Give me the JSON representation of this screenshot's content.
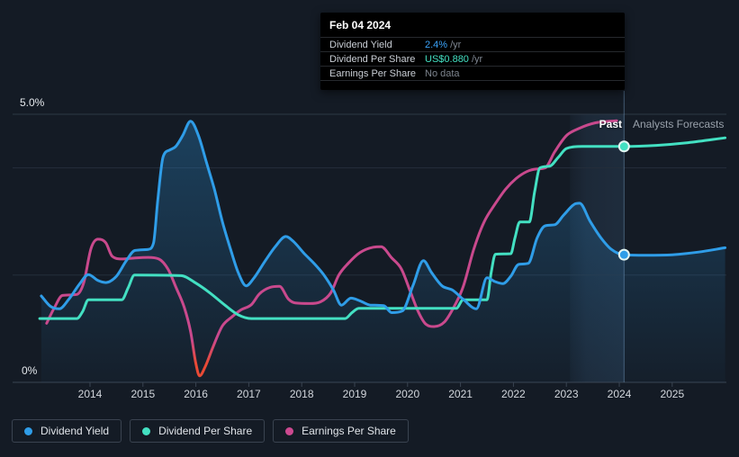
{
  "colors": {
    "background": "#141b25",
    "grid": "#242e3b",
    "grid_top": "#2d3845",
    "axis": "#3a4452",
    "divider": "#7aa6ce",
    "band": "#6098d0",
    "yield": "#2f9de8",
    "dps": "#43e0c2",
    "eps": "#c9498d",
    "eps_negative": "#e94a35",
    "marker_ring": "#e3f6f3"
  },
  "tooltip": {
    "date": "Feb 04 2024",
    "rows": [
      {
        "label": "Dividend Yield",
        "value": "2.4%",
        "suffix": "/yr",
        "value_color": "#3aa2f8"
      },
      {
        "label": "Dividend Per Share",
        "value": "US$0.880",
        "suffix": "/yr",
        "value_color": "#43e0c2"
      },
      {
        "label": "Earnings Per Share",
        "value": "No data",
        "suffix": "",
        "value_color": "#7d848e"
      }
    ]
  },
  "annotations": {
    "past": "Past",
    "forecast": "Analysts Forecasts"
  },
  "axis": {
    "y_top_label": "5.0%",
    "y_bottom_label": "0%",
    "x_ticks": [
      "2014",
      "2015",
      "2016",
      "2017",
      "2018",
      "2019",
      "2020",
      "2021",
      "2022",
      "2023",
      "2024",
      "2025"
    ]
  },
  "legend": {
    "items": [
      {
        "label": "Dividend Yield",
        "color": "#2f9de8"
      },
      {
        "label": "Dividend Per Share",
        "color": "#43e0c2"
      },
      {
        "label": "Earnings Per Share",
        "color": "#cc4990"
      }
    ]
  },
  "chart_data": {
    "type": "line",
    "axis_unit": "%",
    "ylim": [
      0,
      5
    ],
    "xlim": [
      2013,
      2026
    ],
    "gridlines_pct": [
      5,
      4,
      2
    ],
    "baseline_pct": 0,
    "band": {
      "start": 2023.07,
      "end": 2024.09
    },
    "divider_x": 2024.09,
    "series": [
      {
        "name": "Dividend Yield",
        "color_key": "yield",
        "area": true,
        "points": [
          [
            2013.08,
            1.61
          ],
          [
            2013.25,
            1.42
          ],
          [
            2013.42,
            1.37
          ],
          [
            2013.6,
            1.55
          ],
          [
            2013.8,
            1.83
          ],
          [
            2013.97,
            2.01
          ],
          [
            2014.15,
            1.9
          ],
          [
            2014.3,
            1.86
          ],
          [
            2014.5,
            1.98
          ],
          [
            2014.68,
            2.26
          ],
          [
            2014.85,
            2.46
          ],
          [
            2015.1,
            2.48
          ],
          [
            2015.2,
            2.6
          ],
          [
            2015.28,
            3.4
          ],
          [
            2015.38,
            4.2
          ],
          [
            2015.5,
            4.33
          ],
          [
            2015.62,
            4.4
          ],
          [
            2015.75,
            4.6
          ],
          [
            2015.9,
            4.87
          ],
          [
            2016.05,
            4.6
          ],
          [
            2016.2,
            4.1
          ],
          [
            2016.35,
            3.6
          ],
          [
            2016.5,
            3.0
          ],
          [
            2016.65,
            2.5
          ],
          [
            2016.8,
            2.05
          ],
          [
            2016.95,
            1.8
          ],
          [
            2017.1,
            1.95
          ],
          [
            2017.3,
            2.25
          ],
          [
            2017.5,
            2.53
          ],
          [
            2017.7,
            2.72
          ],
          [
            2017.85,
            2.62
          ],
          [
            2018.05,
            2.4
          ],
          [
            2018.25,
            2.2
          ],
          [
            2018.42,
            2.0
          ],
          [
            2018.6,
            1.72
          ],
          [
            2018.75,
            1.44
          ],
          [
            2018.93,
            1.57
          ],
          [
            2019.1,
            1.52
          ],
          [
            2019.3,
            1.44
          ],
          [
            2019.55,
            1.43
          ],
          [
            2019.7,
            1.3
          ],
          [
            2019.9,
            1.33
          ],
          [
            2020.1,
            1.8
          ],
          [
            2020.3,
            2.27
          ],
          [
            2020.45,
            2.05
          ],
          [
            2020.65,
            1.8
          ],
          [
            2020.85,
            1.72
          ],
          [
            2021.05,
            1.55
          ],
          [
            2021.3,
            1.37
          ],
          [
            2021.5,
            1.95
          ],
          [
            2021.65,
            1.88
          ],
          [
            2021.8,
            1.84
          ],
          [
            2021.95,
            1.98
          ],
          [
            2022.1,
            2.2
          ],
          [
            2022.28,
            2.22
          ],
          [
            2022.45,
            2.7
          ],
          [
            2022.6,
            2.92
          ],
          [
            2022.78,
            2.94
          ],
          [
            2022.95,
            3.12
          ],
          [
            2023.15,
            3.32
          ],
          [
            2023.25,
            3.34
          ],
          [
            2023.45,
            3.0
          ],
          [
            2023.65,
            2.7
          ],
          [
            2023.85,
            2.48
          ],
          [
            2024.09,
            2.38
          ],
          [
            2024.5,
            2.37
          ],
          [
            2025.0,
            2.38
          ],
          [
            2025.5,
            2.43
          ],
          [
            2026.0,
            2.51
          ]
        ]
      },
      {
        "name": "Dividend Per Share",
        "color_key": "dps",
        "area": false,
        "points": [
          [
            2013.05,
            1.19
          ],
          [
            2013.75,
            1.19
          ],
          [
            2013.86,
            1.32
          ],
          [
            2013.97,
            1.54
          ],
          [
            2014.6,
            1.54
          ],
          [
            2014.72,
            1.76
          ],
          [
            2014.84,
            2.0
          ],
          [
            2015.72,
            1.99
          ],
          [
            2016.0,
            1.85
          ],
          [
            2016.25,
            1.68
          ],
          [
            2016.55,
            1.44
          ],
          [
            2016.8,
            1.26
          ],
          [
            2017.05,
            1.19
          ],
          [
            2018.82,
            1.19
          ],
          [
            2018.95,
            1.3
          ],
          [
            2019.08,
            1.38
          ],
          [
            2020.92,
            1.38
          ],
          [
            2021.05,
            1.54
          ],
          [
            2021.5,
            1.54
          ],
          [
            2021.58,
            2.05
          ],
          [
            2021.66,
            2.39
          ],
          [
            2021.95,
            2.4
          ],
          [
            2022.03,
            2.7
          ],
          [
            2022.12,
            2.99
          ],
          [
            2022.3,
            2.99
          ],
          [
            2022.4,
            3.55
          ],
          [
            2022.5,
            4.0
          ],
          [
            2022.68,
            4.03
          ],
          [
            2022.85,
            4.2
          ],
          [
            2023.0,
            4.36
          ],
          [
            2023.3,
            4.4
          ],
          [
            2024.09,
            4.4
          ],
          [
            2024.7,
            4.42
          ],
          [
            2025.3,
            4.47
          ],
          [
            2026.0,
            4.56
          ]
        ]
      },
      {
        "name": "Earnings Per Share",
        "color_key": "eps",
        "area": false,
        "negative_gradient": true,
        "points": [
          [
            2013.18,
            1.1
          ],
          [
            2013.32,
            1.38
          ],
          [
            2013.48,
            1.62
          ],
          [
            2013.75,
            1.64
          ],
          [
            2013.88,
            1.85
          ],
          [
            2014.02,
            2.5
          ],
          [
            2014.15,
            2.67
          ],
          [
            2014.3,
            2.6
          ],
          [
            2014.42,
            2.35
          ],
          [
            2014.6,
            2.3
          ],
          [
            2014.85,
            2.32
          ],
          [
            2015.1,
            2.33
          ],
          [
            2015.3,
            2.3
          ],
          [
            2015.48,
            2.1
          ],
          [
            2015.62,
            1.78
          ],
          [
            2015.78,
            1.4
          ],
          [
            2015.9,
            0.95
          ],
          [
            2016.0,
            0.35
          ],
          [
            2016.07,
            0.12
          ],
          [
            2016.18,
            0.3
          ],
          [
            2016.32,
            0.65
          ],
          [
            2016.5,
            1.05
          ],
          [
            2016.68,
            1.22
          ],
          [
            2016.85,
            1.35
          ],
          [
            2017.05,
            1.45
          ],
          [
            2017.2,
            1.65
          ],
          [
            2017.4,
            1.77
          ],
          [
            2017.58,
            1.79
          ],
          [
            2017.75,
            1.55
          ],
          [
            2017.88,
            1.48
          ],
          [
            2018.15,
            1.47
          ],
          [
            2018.35,
            1.5
          ],
          [
            2018.55,
            1.67
          ],
          [
            2018.7,
            2.0
          ],
          [
            2018.88,
            2.22
          ],
          [
            2019.1,
            2.42
          ],
          [
            2019.35,
            2.52
          ],
          [
            2019.5,
            2.53
          ],
          [
            2019.7,
            2.32
          ],
          [
            2019.88,
            2.12
          ],
          [
            2020.05,
            1.7
          ],
          [
            2020.2,
            1.32
          ],
          [
            2020.35,
            1.08
          ],
          [
            2020.5,
            1.04
          ],
          [
            2020.7,
            1.13
          ],
          [
            2020.9,
            1.45
          ],
          [
            2021.05,
            1.78
          ],
          [
            2021.25,
            2.48
          ],
          [
            2021.45,
            3.0
          ],
          [
            2021.65,
            3.32
          ],
          [
            2021.85,
            3.6
          ],
          [
            2022.05,
            3.8
          ],
          [
            2022.25,
            3.93
          ],
          [
            2022.45,
            3.98
          ],
          [
            2022.6,
            4.0
          ],
          [
            2022.78,
            4.3
          ],
          [
            2023.0,
            4.6
          ],
          [
            2023.25,
            4.74
          ],
          [
            2023.55,
            4.84
          ],
          [
            2023.95,
            4.88
          ]
        ]
      }
    ],
    "markers": [
      {
        "series": "Dividend Per Share",
        "x": 2024.09,
        "y": 4.4,
        "color_key": "dps"
      },
      {
        "series": "Dividend Yield",
        "x": 2024.09,
        "y": 2.38,
        "color_key": "yield"
      }
    ]
  }
}
